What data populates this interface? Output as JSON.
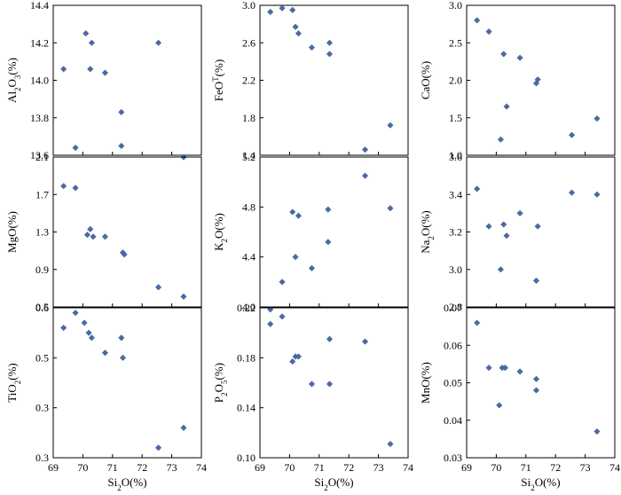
{
  "style": {
    "point_color": "#4a6aa8",
    "frame_color": "#000000",
    "background": "#ffffff"
  },
  "chart_data": [
    {
      "type": "scatter",
      "ylabel": "Al2O3(%)",
      "xlabel": "",
      "xlim": [
        69,
        74
      ],
      "ylim": [
        13.6,
        14.4
      ],
      "xticks": [],
      "yticks": [
        13.6,
        13.8,
        14.0,
        14.2,
        14.4
      ],
      "x": [
        69.35,
        69.75,
        70.1,
        70.25,
        70.3,
        70.75,
        71.3,
        71.3,
        72.55,
        73.4
      ],
      "y": [
        14.06,
        13.64,
        14.25,
        14.06,
        14.2,
        14.04,
        13.83,
        13.65,
        14.2,
        13.59
      ]
    },
    {
      "type": "scatter",
      "ylabel": "FeOT(%)",
      "xlabel": "",
      "xlim": [
        69,
        74
      ],
      "ylim": [
        1.4,
        3.0
      ],
      "xticks": [],
      "yticks": [
        1.4,
        1.8,
        2.2,
        2.6,
        3.0
      ],
      "x": [
        69.35,
        69.75,
        70.1,
        70.2,
        70.3,
        70.75,
        71.35,
        71.35,
        72.55,
        73.4
      ],
      "y": [
        2.93,
        2.97,
        2.95,
        2.77,
        2.7,
        2.55,
        2.6,
        2.48,
        1.46,
        1.72
      ]
    },
    {
      "type": "scatter",
      "ylabel": "CaO(%)",
      "xlabel": "",
      "xlim": [
        69,
        74
      ],
      "ylim": [
        1.0,
        3.0
      ],
      "xticks": [],
      "yticks": [
        1.0,
        1.5,
        2.0,
        2.5,
        3.0
      ],
      "x": [
        69.35,
        69.75,
        70.15,
        70.25,
        70.35,
        70.8,
        71.35,
        71.4,
        72.55,
        73.4
      ],
      "y": [
        2.8,
        2.65,
        1.21,
        2.35,
        1.65,
        2.3,
        1.96,
        2.01,
        1.27,
        1.49
      ]
    },
    {
      "type": "scatter",
      "ylabel": "MgO(%)",
      "xlabel": "",
      "xlim": [
        69,
        74
      ],
      "ylim": [
        0.5,
        2.1
      ],
      "xticks": [],
      "yticks": [
        0.5,
        0.9,
        1.3,
        1.7,
        2.1
      ],
      "x": [
        69.35,
        69.75,
        70.15,
        70.25,
        70.35,
        70.75,
        71.35,
        71.4,
        72.55,
        73.4
      ],
      "y": [
        1.79,
        1.77,
        1.27,
        1.33,
        1.25,
        1.25,
        1.08,
        1.06,
        0.71,
        0.61
      ]
    },
    {
      "type": "scatter",
      "ylabel": "K2O(%)",
      "xlabel": "",
      "xlim": [
        69,
        74
      ],
      "ylim": [
        4.0,
        5.2
      ],
      "xticks": [],
      "yticks": [
        4.0,
        4.4,
        4.8,
        5.2
      ],
      "x": [
        69.35,
        69.75,
        70.1,
        70.2,
        70.3,
        70.75,
        71.3,
        71.3,
        72.55,
        73.4
      ],
      "y": [
        3.98,
        4.2,
        4.76,
        4.4,
        4.73,
        4.31,
        4.78,
        4.52,
        5.05,
        4.79
      ]
    },
    {
      "type": "scatter",
      "ylabel": "Na2O(%)",
      "xlabel": "",
      "xlim": [
        69,
        74
      ],
      "ylim": [
        2.8,
        3.6
      ],
      "xticks": [],
      "yticks": [
        2.8,
        3.0,
        3.2,
        3.4,
        3.6
      ],
      "x": [
        69.35,
        69.75,
        70.15,
        70.25,
        70.35,
        70.8,
        71.35,
        71.4,
        72.55,
        73.4
      ],
      "y": [
        3.43,
        3.23,
        3.0,
        3.24,
        3.18,
        3.3,
        2.94,
        3.23,
        3.41,
        3.4
      ]
    },
    {
      "type": "scatter",
      "ylabel": "TiO2(%)",
      "xlabel": "Si2O(%)",
      "xlim": [
        69,
        74
      ],
      "ylim": [
        0.25,
        0.55
      ],
      "xticks": [
        69,
        70,
        71,
        72,
        73,
        74
      ],
      "yticks": [
        0.25,
        0.35,
        0.45,
        0.55
      ],
      "x": [
        69.35,
        69.75,
        70.05,
        70.2,
        70.3,
        70.75,
        71.3,
        71.35,
        72.55,
        73.4
      ],
      "y": [
        0.51,
        0.54,
        0.52,
        0.5,
        0.49,
        0.46,
        0.49,
        0.45,
        0.27,
        0.31
      ]
    },
    {
      "type": "scatter",
      "ylabel": "P2O5(%)",
      "xlabel": "Si2O(%)",
      "xlim": [
        69,
        74
      ],
      "ylim": [
        0.1,
        0.22
      ],
      "xticks": [
        69,
        70,
        71,
        72,
        73,
        74
      ],
      "yticks": [
        0.1,
        0.14,
        0.18,
        0.22
      ],
      "x": [
        69.35,
        69.75,
        70.1,
        70.2,
        70.3,
        70.75,
        71.35,
        71.35,
        72.55,
        73.4
      ],
      "y": [
        0.207,
        0.213,
        0.177,
        0.181,
        0.181,
        0.159,
        0.195,
        0.159,
        0.193,
        0.111
      ]
    },
    {
      "type": "scatter",
      "ylabel": "MnO(%)",
      "xlabel": "Si2O(%)",
      "xlim": [
        69,
        74
      ],
      "ylim": [
        0.03,
        0.07
      ],
      "xticks": [
        69,
        70,
        71,
        72,
        73,
        74
      ],
      "yticks": [
        0.03,
        0.04,
        0.05,
        0.06,
        0.07
      ],
      "x": [
        69.35,
        69.75,
        70.1,
        70.2,
        70.3,
        70.8,
        71.35,
        71.35,
        73.4
      ],
      "y": [
        0.066,
        0.054,
        0.044,
        0.054,
        0.054,
        0.053,
        0.051,
        0.048,
        0.037
      ]
    }
  ]
}
